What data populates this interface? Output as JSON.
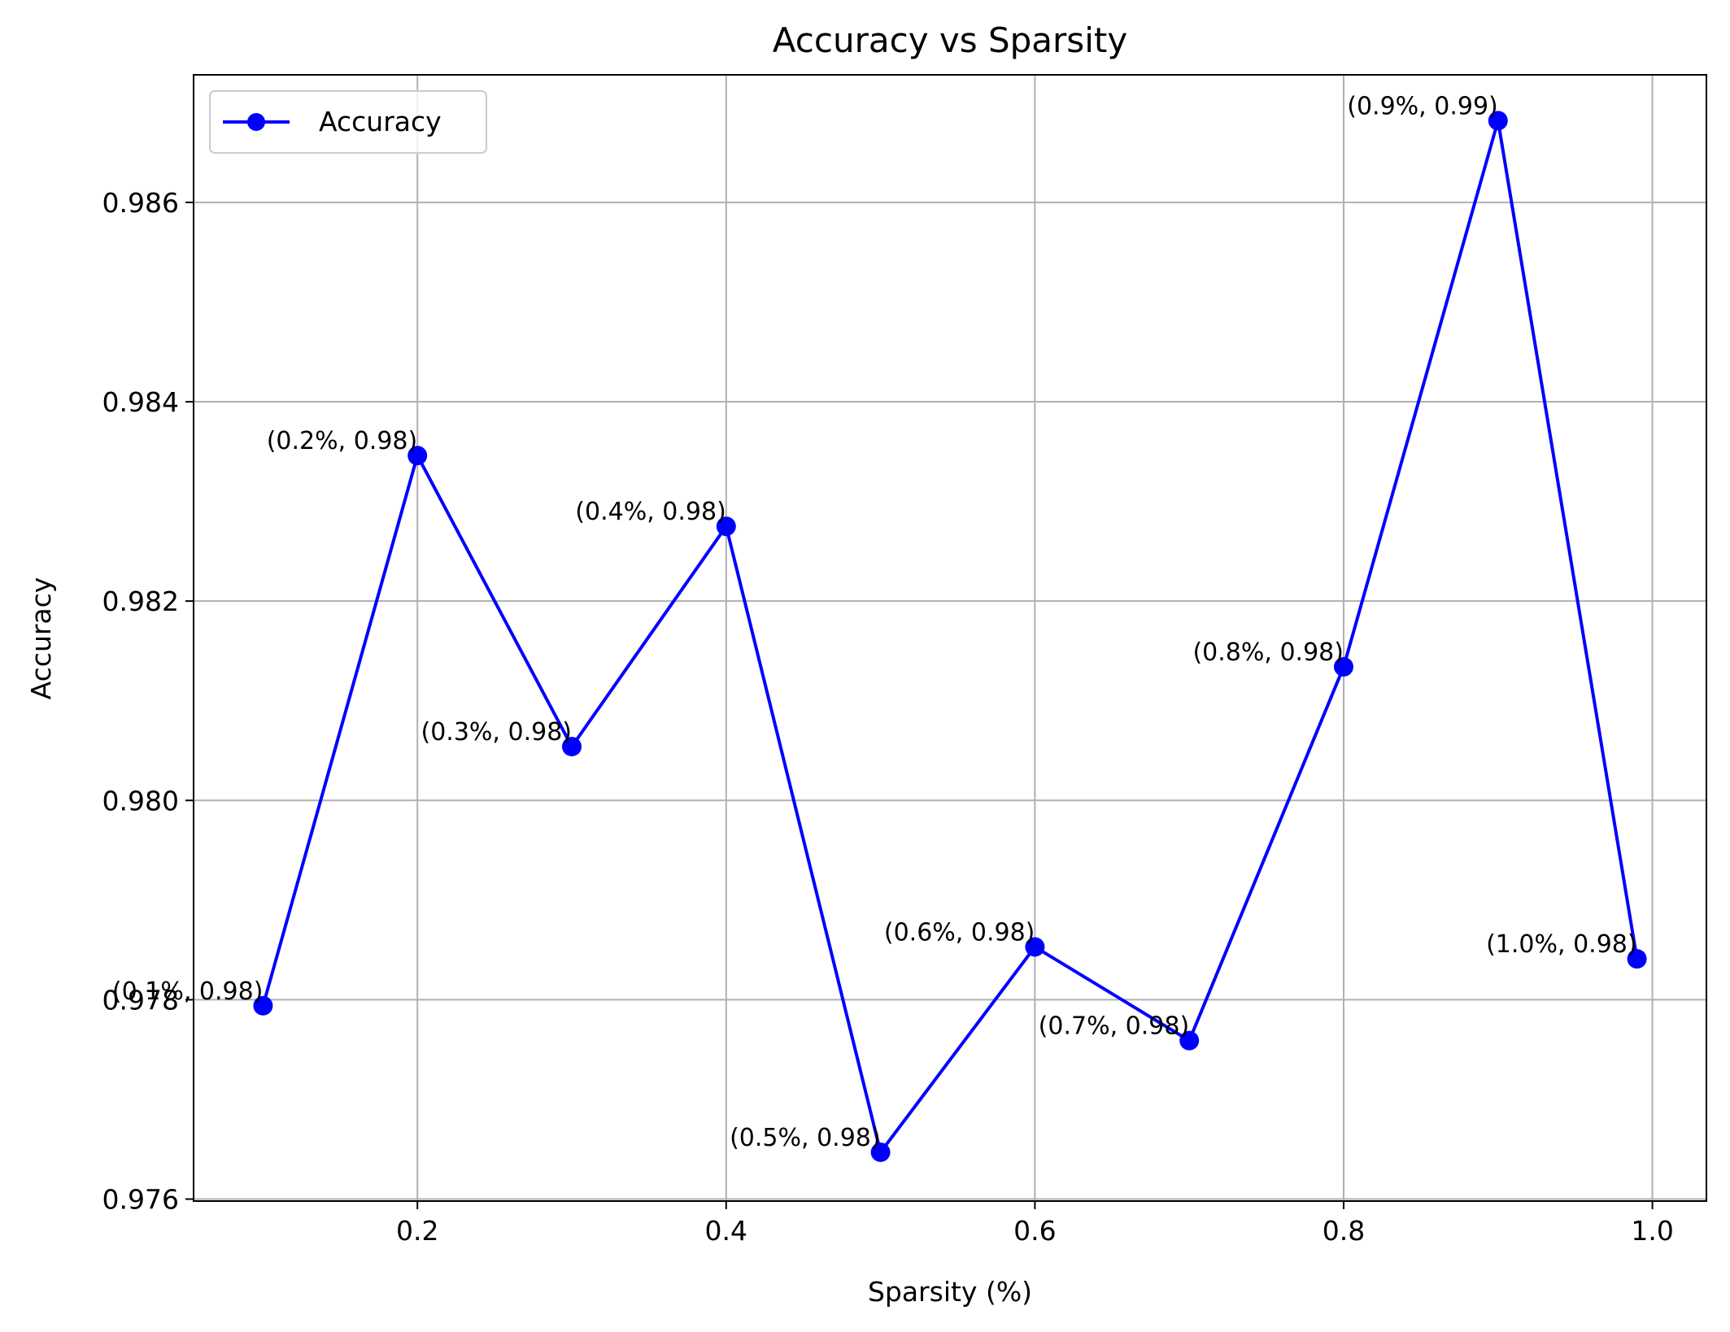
{
  "chart_data": {
    "type": "line",
    "title": "Accuracy vs Sparsity",
    "xlabel": "Sparsity (%)",
    "ylabel": "Accuracy",
    "xlim": [
      0.055,
      1.035
    ],
    "ylim": [
      0.97598,
      0.98728
    ],
    "x_ticks": [
      0.2,
      0.4,
      0.6,
      0.8,
      1.0
    ],
    "x_tick_labels": [
      "0.2",
      "0.4",
      "0.6",
      "0.8",
      "1.0"
    ],
    "y_ticks": [
      0.976,
      0.978,
      0.98,
      0.982,
      0.984,
      0.986
    ],
    "y_tick_labels": [
      "0.976",
      "0.978",
      "0.980",
      "0.982",
      "0.984",
      "0.986"
    ],
    "grid": true,
    "legend_position": "upper-left",
    "series": [
      {
        "name": "Accuracy",
        "color": "#0000ff",
        "marker": "circle",
        "x": [
          0.1,
          0.2,
          0.3,
          0.4,
          0.5,
          0.6,
          0.7,
          0.8,
          0.9,
          0.99
        ],
        "y": [
          0.97794,
          0.98346,
          0.98054,
          0.98275,
          0.97647,
          0.97853,
          0.97759,
          0.98134,
          0.98682,
          0.97841
        ],
        "point_labels": [
          "(0.1%, 0.98)",
          "(0.2%, 0.98)",
          "(0.3%, 0.98)",
          "(0.4%, 0.98)",
          "(0.5%, 0.98)",
          "(0.6%, 0.98)",
          "(0.7%, 0.98)",
          "(0.8%, 0.98)",
          "(0.9%, 0.99)",
          "(1.0%, 0.98)"
        ]
      }
    ]
  }
}
